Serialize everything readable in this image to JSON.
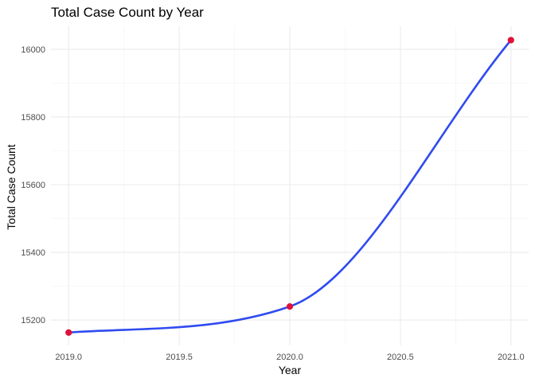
{
  "chart_data": {
    "type": "line",
    "title": "Total Case Count by Year",
    "xlabel": "Year",
    "ylabel": "Total Case Count",
    "x": [
      2019,
      2020,
      2021
    ],
    "series": [
      {
        "values": [
          15163,
          15240,
          16027
        ]
      }
    ],
    "xlim": [
      2018.92,
      2021.08
    ],
    "ylim": [
      15125,
      16068
    ],
    "x_ticks": [
      2019.0,
      2019.5,
      2020.0,
      2020.5,
      2021.0
    ],
    "x_tick_labels": [
      "2019.0",
      "2019.5",
      "2020.0",
      "2020.5",
      "2021.0"
    ],
    "y_ticks": [
      15200,
      15400,
      15600,
      15800,
      16000
    ],
    "y_tick_labels": [
      "15200",
      "15400",
      "15600",
      "15800",
      "16000"
    ],
    "grid": true,
    "smoothed": true,
    "line_color": "#2f4bf0",
    "point_color": "#e0103a"
  }
}
